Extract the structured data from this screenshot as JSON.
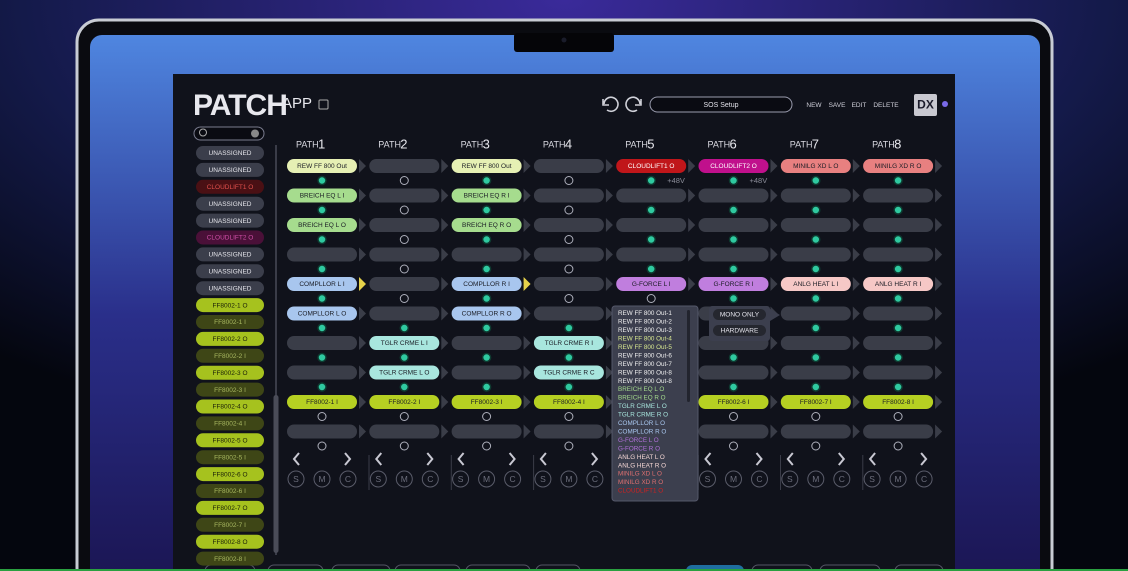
{
  "header": {
    "title": "PATCH",
    "title_suffix": "APP",
    "preset": "SOS Setup",
    "actions": [
      "NEW",
      "SAVE",
      "EDIT",
      "DELETE"
    ],
    "logo": "DX"
  },
  "sidebar": {
    "items": [
      {
        "label": "UNASSIGNED",
        "color": "#3b3e4b",
        "text_color": "#e4e4ea"
      },
      {
        "label": "UNASSIGNED",
        "color": "#3b3e4b",
        "text_color": "#e4e4ea"
      },
      {
        "label": "CLOUDLIFT1 O",
        "color": "#4a1014",
        "text_color": "#e0504c"
      },
      {
        "label": "UNASSIGNED",
        "color": "#3b3e4b",
        "text_color": "#e4e4ea"
      },
      {
        "label": "UNASSIGNED",
        "color": "#3b3e4b",
        "text_color": "#e4e4ea"
      },
      {
        "label": "CLOUDLIFT2 O",
        "color": "#4a1038",
        "text_color": "#d050a8"
      },
      {
        "label": "UNASSIGNED",
        "color": "#3b3e4b",
        "text_color": "#e4e4ea"
      },
      {
        "label": "UNASSIGNED",
        "color": "#3b3e4b",
        "text_color": "#e4e4ea"
      },
      {
        "label": "UNASSIGNED",
        "color": "#3b3e4b",
        "text_color": "#e4e4ea"
      },
      {
        "label": "FF8002-1 O",
        "color": "#a6c21e",
        "text_color": "#1b2008"
      },
      {
        "label": "FF8002-1 I",
        "color": "#3e4616",
        "text_color": "#a8b860"
      },
      {
        "label": "FF8002-2 O",
        "color": "#a6c21e",
        "text_color": "#1b2008"
      },
      {
        "label": "FF8002-2 I",
        "color": "#3e4616",
        "text_color": "#a8b860"
      },
      {
        "label": "FF8002-3 O",
        "color": "#a6c21e",
        "text_color": "#1b2008"
      },
      {
        "label": "FF8002-3 I",
        "color": "#3e4616",
        "text_color": "#a8b860"
      },
      {
        "label": "FF8002-4 O",
        "color": "#a6c21e",
        "text_color": "#1b2008"
      },
      {
        "label": "FF8002-4 I",
        "color": "#3e4616",
        "text_color": "#a8b860"
      },
      {
        "label": "FF8002-5 O",
        "color": "#a6c21e",
        "text_color": "#1b2008"
      },
      {
        "label": "FF8002-5 I",
        "color": "#3e4616",
        "text_color": "#a8b860"
      },
      {
        "label": "FF8002-6 O",
        "color": "#a6c21e",
        "text_color": "#1b2008"
      },
      {
        "label": "FF8002-6 I",
        "color": "#3e4616",
        "text_color": "#a8b860"
      },
      {
        "label": "FF8002-7 O",
        "color": "#a6c21e",
        "text_color": "#1b2008"
      },
      {
        "label": "FF8002-7 I",
        "color": "#3e4616",
        "text_color": "#a8b860"
      },
      {
        "label": "FF8002-8 O",
        "color": "#a6c21e",
        "text_color": "#1b2008"
      },
      {
        "label": "FF8002-8 I",
        "color": "#3e4616",
        "text_color": "#a8b860"
      }
    ]
  },
  "paths": [
    {
      "label": "PATH",
      "number": "1",
      "slots": [
        {
          "label": "REW FF 800 Out",
          "color": "#e6f0b4"
        },
        {
          "label": "BREICH EQ L I",
          "color": "#a6dc8e"
        },
        {
          "label": "BREICH EQ L O",
          "color": "#a6dc8e"
        },
        null,
        {
          "label": "COMPLLOR L I",
          "color": "#a8c6ee",
          "chevron_color": "#e6d24a"
        },
        {
          "label": "COMPLLOR L O",
          "color": "#a8c6ee"
        },
        null,
        null,
        {
          "label": "FF8002-1 I",
          "color": "#b6d022"
        },
        null
      ]
    },
    {
      "label": "PATH",
      "number": "2",
      "slots": [
        null,
        null,
        null,
        null,
        null,
        null,
        {
          "label": "TGLR CRME L I",
          "color": "#a8e6de"
        },
        {
          "label": "TGLR CRME L O",
          "color": "#a8e6de"
        },
        {
          "label": "FF8002-2 I",
          "color": "#b6d022"
        },
        null
      ]
    },
    {
      "label": "PATH",
      "number": "3",
      "slots": [
        {
          "label": "REW FF 800 Out",
          "color": "#e6f0b4"
        },
        {
          "label": "BREICH EQ R I",
          "color": "#a6dc8e"
        },
        {
          "label": "BREICH EQ R O",
          "color": "#a6dc8e"
        },
        null,
        {
          "label": "COMPLLOR R I",
          "color": "#a8c6ee",
          "chevron_color": "#e6d24a"
        },
        {
          "label": "COMPLLOR R O",
          "color": "#a8c6ee"
        },
        null,
        null,
        {
          "label": "FF8002-3 I",
          "color": "#b6d022"
        },
        null
      ]
    },
    {
      "label": "PATH",
      "number": "4",
      "slots": [
        null,
        null,
        null,
        null,
        null,
        null,
        {
          "label": "TGLR CRME R I",
          "color": "#a8e6de"
        },
        {
          "label": "TGLR CRME R C",
          "color": "#a8e6de"
        },
        {
          "label": "FF8002-4 I",
          "color": "#b6d022"
        },
        null
      ]
    },
    {
      "label": "PATH",
      "number": "5",
      "note": "+48V",
      "slots": [
        {
          "label": "CLOUDLIFT1 O",
          "color": "#c0161a"
        },
        null,
        null,
        null,
        {
          "label": "G-FORCE L I",
          "color": "#c07ede"
        },
        null,
        null,
        null,
        null,
        null
      ]
    },
    {
      "label": "PATH",
      "number": "6",
      "note": "+48V",
      "slots": [
        {
          "label": "CLOUDLIFT2 O",
          "color": "#c0108c"
        },
        null,
        null,
        null,
        {
          "label": "G-FORCE R I",
          "color": "#c07ede"
        },
        null,
        null,
        null,
        {
          "label": "FF8002-6 I",
          "color": "#b6d022"
        },
        null
      ]
    },
    {
      "label": "PATH",
      "number": "7",
      "slots": [
        {
          "label": "MINILG XD L O",
          "color": "#e88080"
        },
        null,
        null,
        null,
        {
          "label": "ANLG HEAT L I",
          "color": "#f6c8c6"
        },
        null,
        null,
        null,
        {
          "label": "FF8002-7 I",
          "color": "#b6d022"
        },
        null
      ]
    },
    {
      "label": "PATH",
      "number": "8",
      "slots": [
        {
          "label": "MINILG XD R O",
          "color": "#e88080"
        },
        null,
        null,
        null,
        {
          "label": "ANLG HEAT R I",
          "color": "#f6c8c6"
        },
        null,
        null,
        null,
        {
          "label": "FF8002-8 I",
          "color": "#b6d022"
        },
        null
      ]
    }
  ],
  "controls": [
    "S",
    "M",
    "C"
  ],
  "dropdown": {
    "items": [
      {
        "label": "REW FF 800 Out-1",
        "color": "#f0f0f0"
      },
      {
        "label": "REW FF 800 Out-2",
        "color": "#f0f0f0"
      },
      {
        "label": "REW FF 800 Out-3",
        "color": "#f0f0f0"
      },
      {
        "label": "REW FF 800 Out-4",
        "color": "#d8e890"
      },
      {
        "label": "REW FF 800 Out-5",
        "color": "#d8e890"
      },
      {
        "label": "REW FF 800 Out-6",
        "color": "#f0f0f0"
      },
      {
        "label": "REW FF 800 Out-7",
        "color": "#f0f0f0"
      },
      {
        "label": "REW FF 800 Out-8",
        "color": "#f0f0f0"
      },
      {
        "label": "REW FF 800 Out-8",
        "color": "#f0f0f0"
      },
      {
        "label": "BREICH EQ L O",
        "color": "#a6dc8e"
      },
      {
        "label": "BREICH EQ R O",
        "color": "#a6dc8e"
      },
      {
        "label": "TGLR CRME L O",
        "color": "#a8e6de"
      },
      {
        "label": "TGLR CRME R O",
        "color": "#a8e6de"
      },
      {
        "label": "COMPLLOR L O",
        "color": "#a8c6ee"
      },
      {
        "label": "COMPLLOR R O",
        "color": "#a8c6ee"
      },
      {
        "label": "G-FORCE L O",
        "color": "#b070d8"
      },
      {
        "label": "G-FORCE R O",
        "color": "#b070d8"
      },
      {
        "label": "ANLG HEAT L O",
        "color": "#f6d8d6"
      },
      {
        "label": "ANLG HEAT R O",
        "color": "#f6d8d6"
      },
      {
        "label": "MINILG XD L O",
        "color": "#e07070"
      },
      {
        "label": "MINILG XD R O",
        "color": "#e07070"
      },
      {
        "label": "CLOUDLIFT1 O",
        "color": "#d02020"
      }
    ]
  },
  "context_menu": {
    "items": [
      "MONO ONLY",
      "HARDWARE"
    ]
  }
}
